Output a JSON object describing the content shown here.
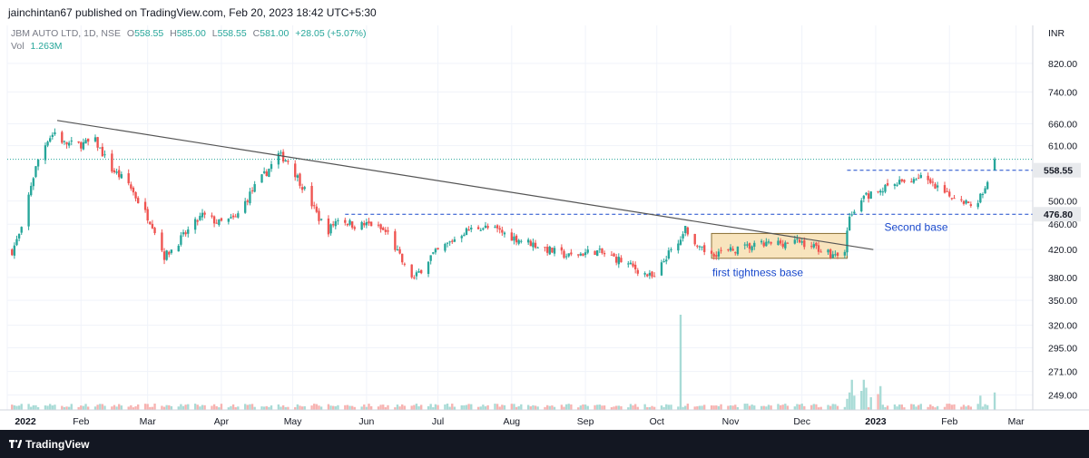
{
  "publisher_line": "jainchintan67 published on TradingView.com, Feb 20, 2023 18:42 UTC+5:30",
  "footer": {
    "brand": "TradingView"
  },
  "legend": {
    "symbol": "JBM AUTO LTD, 1D, NSE",
    "open_label": "O",
    "open": "558.55",
    "high_label": "H",
    "high": "585.00",
    "low_label": "L",
    "low": "558.55",
    "close_label": "C",
    "close": "581.00",
    "change": "+28.05 (+5.07%)",
    "vol_label": "Vol",
    "vol": "1.263M"
  },
  "colors": {
    "up": "#26a69a",
    "down": "#ef5350",
    "vol_up": "#a8dbd6",
    "vol_down": "#f7b3b1",
    "hline": "#1848cc",
    "box_fill": "#f7dfb2",
    "box_stroke": "#8a6f35",
    "trendline": "#555555",
    "last_price_bg": "#e8eaed"
  },
  "chart_data": {
    "type": "candlestick",
    "title": "JBM AUTO LTD, 1D, NSE",
    "ylabel": "INR",
    "y_scale": "log",
    "ylim": [
      236,
      940
    ],
    "x_range": [
      "2022-01-01",
      "2023-03-08"
    ],
    "x_tick_labels": [
      "2022",
      "Feb",
      "Mar",
      "Apr",
      "May",
      "Jun",
      "Jul",
      "Aug",
      "Sep",
      "Oct",
      "Nov",
      "Dec",
      "2023",
      "Feb",
      "Mar"
    ],
    "y_tick_labels": [
      "820.00",
      "740.00",
      "660.00",
      "610.00",
      "500.00",
      "460.00",
      "420.00",
      "380.00",
      "350.00",
      "320.00",
      "295.00",
      "271.00",
      "249.00"
    ],
    "last_price_label": "558.55",
    "level_label": "476.80",
    "horizontal_levels": [
      {
        "value": 558.55,
        "from": "2022-12-20",
        "to": "2023-02-22"
      },
      {
        "value": 476.8,
        "from": "2022-05-23",
        "to": "2023-02-22"
      }
    ],
    "trendline": {
      "from": {
        "date": "2022-01-22",
        "price": 668
      },
      "to": {
        "date": "2022-12-31",
        "price": 420
      }
    },
    "zone": {
      "from": "2022-10-24",
      "to": "2022-12-20",
      "price_low": 407,
      "price_high": 445
    },
    "annotations": [
      "first tightness base",
      "Second base"
    ],
    "price_anchors": [
      [
        "2022-01-03",
        418
      ],
      [
        "2022-01-07",
        450
      ],
      [
        "2022-01-11",
        530
      ],
      [
        "2022-01-14",
        580
      ],
      [
        "2022-01-18",
        625
      ],
      [
        "2022-01-21",
        640
      ],
      [
        "2022-01-25",
        615
      ],
      [
        "2022-01-31",
        612
      ],
      [
        "2022-02-07",
        620
      ],
      [
        "2022-02-14",
        560
      ],
      [
        "2022-02-21",
        532
      ],
      [
        "2022-02-25",
        500
      ],
      [
        "2022-03-03",
        460
      ],
      [
        "2022-03-08",
        410
      ],
      [
        "2022-03-11",
        420
      ],
      [
        "2022-03-17",
        445
      ],
      [
        "2022-03-24",
        475
      ],
      [
        "2022-03-31",
        462
      ],
      [
        "2022-04-07",
        470
      ],
      [
        "2022-04-14",
        520
      ],
      [
        "2022-04-20",
        555
      ],
      [
        "2022-04-25",
        590
      ],
      [
        "2022-04-29",
        578
      ],
      [
        "2022-05-06",
        520
      ],
      [
        "2022-05-12",
        470
      ],
      [
        "2022-05-16",
        450
      ],
      [
        "2022-05-20",
        470
      ],
      [
        "2022-05-27",
        458
      ],
      [
        "2022-06-03",
        460
      ],
      [
        "2022-06-10",
        445
      ],
      [
        "2022-06-17",
        395
      ],
      [
        "2022-06-21",
        378
      ],
      [
        "2022-06-28",
        410
      ],
      [
        "2022-07-05",
        428
      ],
      [
        "2022-07-12",
        448
      ],
      [
        "2022-07-19",
        456
      ],
      [
        "2022-07-26",
        450
      ],
      [
        "2022-08-02",
        438
      ],
      [
        "2022-08-09",
        430
      ],
      [
        "2022-08-16",
        420
      ],
      [
        "2022-08-25",
        410
      ],
      [
        "2022-09-05",
        418
      ],
      [
        "2022-09-15",
        405
      ],
      [
        "2022-09-26",
        385
      ],
      [
        "2022-09-30",
        378
      ],
      [
        "2022-10-05",
        410
      ],
      [
        "2022-10-10",
        428
      ],
      [
        "2022-10-13",
        455
      ],
      [
        "2022-10-18",
        420
      ],
      [
        "2022-10-25",
        415
      ],
      [
        "2022-11-01",
        418
      ],
      [
        "2022-11-10",
        425
      ],
      [
        "2022-11-20",
        430
      ],
      [
        "2022-11-30",
        432
      ],
      [
        "2022-12-08",
        422
      ],
      [
        "2022-12-14",
        412
      ],
      [
        "2022-12-19",
        420
      ],
      [
        "2022-12-21",
        470
      ],
      [
        "2022-12-24",
        490
      ],
      [
        "2022-12-28",
        508
      ],
      [
        "2023-01-03",
        520
      ],
      [
        "2023-01-09",
        530
      ],
      [
        "2023-01-16",
        540
      ],
      [
        "2023-01-20",
        548
      ],
      [
        "2023-01-24",
        530
      ],
      [
        "2023-01-31",
        510
      ],
      [
        "2023-02-06",
        506
      ],
      [
        "2023-02-10",
        490
      ],
      [
        "2023-02-13",
        502
      ],
      [
        "2023-02-16",
        525
      ],
      [
        "2023-02-20",
        581
      ]
    ],
    "volume_spikes": [
      [
        "2022-10-11",
        3.0
      ],
      [
        "2022-12-20",
        0.35
      ],
      [
        "2022-12-21",
        0.55
      ],
      [
        "2022-12-22",
        0.95
      ],
      [
        "2022-12-23",
        0.45
      ],
      [
        "2022-12-26",
        0.6
      ],
      [
        "2022-12-27",
        0.95
      ],
      [
        "2022-12-28",
        0.7
      ],
      [
        "2022-12-30",
        0.4
      ],
      [
        "2023-01-02",
        0.5
      ],
      [
        "2023-01-03",
        0.75
      ],
      [
        "2023-02-14",
        0.45
      ],
      [
        "2023-02-20",
        0.55
      ]
    ]
  }
}
